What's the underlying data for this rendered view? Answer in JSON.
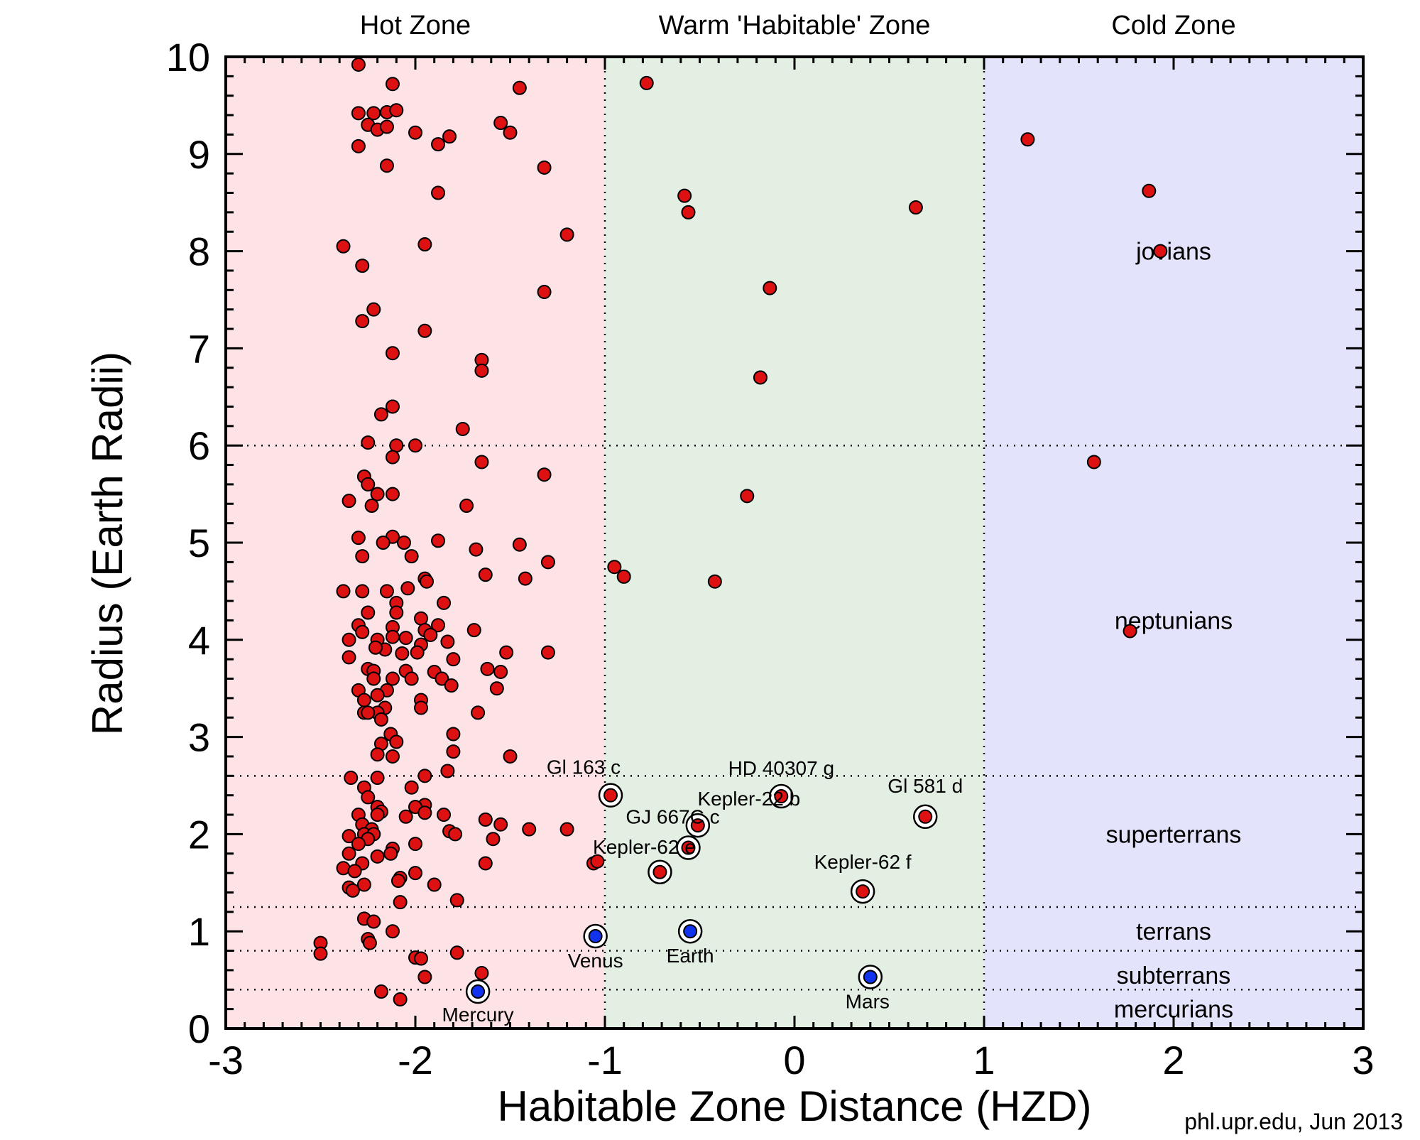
{
  "chart_data": {
    "type": "scatter",
    "title": "",
    "xlabel": "Habitable Zone Distance (HZD)",
    "ylabel": "Radius (Earth Radii)",
    "xlim": [
      -3,
      3
    ],
    "ylim": [
      0,
      10
    ],
    "xticks": [
      "-3",
      "-2",
      "-1",
      "0",
      "1",
      "2",
      "3"
    ],
    "yticks": [
      "0",
      "1",
      "2",
      "3",
      "4",
      "5",
      "6",
      "7",
      "8",
      "9",
      "10"
    ],
    "credit": "phl.upr.edu, Jun 2013",
    "zones": [
      {
        "label": "Hot Zone",
        "x_range": [
          -3,
          -1
        ],
        "color": "#fde3e6"
      },
      {
        "label": "Warm 'Habitable' Zone",
        "x_range": [
          -1,
          1
        ],
        "color": "#e3efe3"
      },
      {
        "label": "Cold Zone",
        "x_range": [
          1,
          3
        ],
        "color": "#e3e3fb"
      }
    ],
    "size_classes": [
      {
        "label": "jovians",
        "label_y": 8.0
      },
      {
        "label": "neptunians",
        "label_y": 4.2
      },
      {
        "label": "superterrans",
        "label_y": 2.0
      },
      {
        "label": "terrans",
        "label_y": 1.0
      },
      {
        "label": "subterrans",
        "label_y": 0.55
      },
      {
        "label": "mercurians",
        "label_y": 0.2
      }
    ],
    "class_boundaries_y": [
      0.4,
      0.8,
      1.25,
      2.6,
      6.0
    ],
    "grid": false,
    "colors": {
      "exoplanet": "#dd1111",
      "solar_system": "#1133ee",
      "outline": "#000000"
    },
    "series": [
      {
        "name": "",
        "color": "#dd1111",
        "points": [
          [
            -2.3,
            9.92
          ],
          [
            -2.12,
            9.72
          ],
          [
            -1.45,
            9.68
          ],
          [
            -2.3,
            9.42
          ],
          [
            -2.22,
            9.42
          ],
          [
            -2.15,
            9.43
          ],
          [
            -2.1,
            9.45
          ],
          [
            -2.25,
            9.3
          ],
          [
            -2.2,
            9.25
          ],
          [
            -2.15,
            9.28
          ],
          [
            -1.55,
            9.32
          ],
          [
            -1.5,
            9.22
          ],
          [
            -2.0,
            9.22
          ],
          [
            -1.82,
            9.18
          ],
          [
            -2.3,
            9.08
          ],
          [
            -1.88,
            9.1
          ],
          [
            -2.15,
            8.88
          ],
          [
            -1.32,
            8.86
          ],
          [
            -1.88,
            8.6
          ],
          [
            -2.38,
            8.05
          ],
          [
            -1.95,
            8.07
          ],
          [
            -1.2,
            8.17
          ],
          [
            -2.28,
            7.85
          ],
          [
            -1.32,
            7.58
          ],
          [
            -2.22,
            7.4
          ],
          [
            -2.28,
            7.28
          ],
          [
            -1.95,
            7.18
          ],
          [
            -2.12,
            6.95
          ],
          [
            -1.65,
            6.88
          ],
          [
            -1.65,
            6.77
          ],
          [
            -2.12,
            6.4
          ],
          [
            -2.18,
            6.32
          ],
          [
            -1.75,
            6.17
          ],
          [
            -2.25,
            6.03
          ],
          [
            -2.1,
            6.0
          ],
          [
            -2.0,
            6.0
          ],
          [
            -2.12,
            5.88
          ],
          [
            -1.65,
            5.83
          ],
          [
            -2.27,
            5.68
          ],
          [
            -1.32,
            5.7
          ],
          [
            -2.25,
            5.6
          ],
          [
            -2.2,
            5.5
          ],
          [
            -2.12,
            5.5
          ],
          [
            -2.35,
            5.43
          ],
          [
            -2.23,
            5.38
          ],
          [
            -1.73,
            5.38
          ],
          [
            -2.3,
            5.05
          ],
          [
            -2.12,
            5.06
          ],
          [
            -2.06,
            5.0
          ],
          [
            -2.17,
            5.0
          ],
          [
            -1.88,
            5.02
          ],
          [
            -1.45,
            4.98
          ],
          [
            -2.02,
            4.86
          ],
          [
            -1.68,
            4.93
          ],
          [
            -2.28,
            4.86
          ],
          [
            -1.3,
            4.8
          ],
          [
            -1.63,
            4.67
          ],
          [
            -1.42,
            4.63
          ],
          [
            -1.95,
            4.63
          ],
          [
            -1.94,
            4.6
          ],
          [
            -2.38,
            4.5
          ],
          [
            -2.28,
            4.5
          ],
          [
            -2.15,
            4.5
          ],
          [
            -2.04,
            4.53
          ],
          [
            -1.85,
            4.38
          ],
          [
            -2.1,
            4.38
          ],
          [
            -2.1,
            4.28
          ],
          [
            -1.97,
            4.22
          ],
          [
            -2.25,
            4.28
          ],
          [
            -2.3,
            4.15
          ],
          [
            -1.88,
            4.15
          ],
          [
            -2.12,
            4.13
          ],
          [
            -1.95,
            4.1
          ],
          [
            -2.28,
            4.08
          ],
          [
            -1.92,
            4.05
          ],
          [
            -2.05,
            4.02
          ],
          [
            -1.69,
            4.1
          ],
          [
            -2.12,
            4.03
          ],
          [
            -2.2,
            4.0
          ],
          [
            -1.83,
            3.98
          ],
          [
            -2.35,
            4.0
          ],
          [
            -1.97,
            3.95
          ],
          [
            -2.16,
            3.9
          ],
          [
            -2.21,
            3.92
          ],
          [
            -1.99,
            3.87
          ],
          [
            -2.07,
            3.86
          ],
          [
            -1.52,
            3.87
          ],
          [
            -1.3,
            3.87
          ],
          [
            -2.35,
            3.82
          ],
          [
            -1.8,
            3.8
          ],
          [
            -1.62,
            3.7
          ],
          [
            -2.25,
            3.7
          ],
          [
            -2.22,
            3.68
          ],
          [
            -2.05,
            3.68
          ],
          [
            -1.9,
            3.67
          ],
          [
            -1.55,
            3.67
          ],
          [
            -2.02,
            3.6
          ],
          [
            -2.12,
            3.6
          ],
          [
            -2.22,
            3.6
          ],
          [
            -1.86,
            3.6
          ],
          [
            -1.81,
            3.53
          ],
          [
            -2.3,
            3.48
          ],
          [
            -2.15,
            3.48
          ],
          [
            -1.57,
            3.5
          ],
          [
            -2.2,
            3.43
          ],
          [
            -2.27,
            3.38
          ],
          [
            -1.97,
            3.38
          ],
          [
            -2.16,
            3.3
          ],
          [
            -1.97,
            3.3
          ],
          [
            -2.27,
            3.25
          ],
          [
            -2.2,
            3.25
          ],
          [
            -1.67,
            3.25
          ],
          [
            -2.25,
            3.25
          ],
          [
            -2.18,
            3.18
          ],
          [
            -1.8,
            3.03
          ],
          [
            -2.13,
            3.03
          ],
          [
            -2.1,
            2.95
          ],
          [
            -2.18,
            2.93
          ],
          [
            -1.8,
            2.85
          ],
          [
            -2.2,
            2.82
          ],
          [
            -2.12,
            2.8
          ],
          [
            -1.5,
            2.8
          ],
          [
            -1.83,
            2.65
          ],
          [
            -2.34,
            2.58
          ],
          [
            -2.2,
            2.58
          ],
          [
            -1.95,
            2.6
          ],
          [
            -2.27,
            2.48
          ],
          [
            -2.02,
            2.48
          ],
          [
            -2.25,
            2.38
          ],
          [
            -1.95,
            2.3
          ],
          [
            -2.2,
            2.28
          ],
          [
            -2.0,
            2.28
          ],
          [
            -2.18,
            2.23
          ],
          [
            -2.3,
            2.2
          ],
          [
            -1.85,
            2.2
          ],
          [
            -1.95,
            2.22
          ],
          [
            -2.2,
            2.2
          ],
          [
            -2.05,
            2.18
          ],
          [
            -1.63,
            2.15
          ],
          [
            -2.28,
            2.1
          ],
          [
            -2.23,
            2.05
          ],
          [
            -2.27,
            2.0
          ],
          [
            -2.22,
            2.0
          ],
          [
            -1.82,
            2.03
          ],
          [
            -1.79,
            2.0
          ],
          [
            -2.35,
            1.98
          ],
          [
            -1.55,
            2.1
          ],
          [
            -1.4,
            2.05
          ],
          [
            -1.2,
            2.05
          ],
          [
            -2.25,
            1.95
          ],
          [
            -1.59,
            1.95
          ],
          [
            -2.3,
            1.9
          ],
          [
            -2.0,
            1.9
          ],
          [
            -2.35,
            1.8
          ],
          [
            -2.12,
            1.85
          ],
          [
            -2.13,
            1.8
          ],
          [
            -2.2,
            1.77
          ],
          [
            -1.63,
            1.7
          ],
          [
            -2.28,
            1.7
          ],
          [
            -1.06,
            1.7
          ],
          [
            -1.04,
            1.72
          ],
          [
            -2.38,
            1.65
          ],
          [
            -2.32,
            1.62
          ],
          [
            -2.0,
            1.6
          ],
          [
            -2.08,
            1.55
          ],
          [
            -2.09,
            1.52
          ],
          [
            -2.27,
            1.48
          ],
          [
            -2.35,
            1.45
          ],
          [
            -2.33,
            1.42
          ],
          [
            -1.9,
            1.48
          ],
          [
            -2.08,
            1.3
          ],
          [
            -1.78,
            1.32
          ],
          [
            -2.27,
            1.13
          ],
          [
            -2.22,
            1.1
          ],
          [
            -2.12,
            1.0
          ],
          [
            -2.25,
            0.92
          ],
          [
            -2.24,
            0.88
          ],
          [
            -2.5,
            0.88
          ],
          [
            -1.78,
            0.78
          ],
          [
            -2.5,
            0.77
          ],
          [
            -2.0,
            0.73
          ],
          [
            -1.97,
            0.72
          ],
          [
            -1.65,
            0.57
          ],
          [
            -1.95,
            0.53
          ],
          [
            -2.18,
            0.38
          ],
          [
            -2.08,
            0.3
          ],
          [
            -0.78,
            9.73
          ],
          [
            -0.58,
            8.57
          ],
          [
            -0.56,
            8.4
          ],
          [
            0.64,
            8.45
          ],
          [
            -0.13,
            7.62
          ],
          [
            -0.18,
            6.7
          ],
          [
            -0.25,
            5.48
          ],
          [
            -0.95,
            4.75
          ],
          [
            -0.9,
            4.65
          ],
          [
            -0.42,
            4.6
          ],
          [
            -0.97,
            2.4
          ],
          [
            -0.07,
            2.39
          ],
          [
            -0.51,
            2.09
          ],
          [
            0.69,
            2.18
          ],
          [
            -0.56,
            1.86
          ],
          [
            -0.71,
            1.61
          ],
          [
            0.36,
            1.41
          ],
          [
            1.23,
            9.15
          ],
          [
            1.87,
            8.62
          ],
          [
            1.93,
            8.0
          ],
          [
            1.58,
            5.83
          ],
          [
            1.77,
            4.09
          ]
        ]
      },
      {
        "name": "",
        "color": "#1133ee",
        "points": [
          [
            -1.05,
            0.95
          ],
          [
            -0.55,
            1.0
          ],
          [
            0.4,
            0.53
          ],
          [
            -1.67,
            0.38
          ]
        ]
      }
    ],
    "annotations": [
      {
        "text": "Gl 163 c",
        "x": -0.97,
        "y": 2.4,
        "circled": true
      },
      {
        "text": "HD 40307 g",
        "x": -0.07,
        "y": 2.39,
        "circled": true
      },
      {
        "text": "Kepler-22 b",
        "x": -0.51,
        "y": 2.09,
        "circled": true
      },
      {
        "text": "GJ 667C c",
        "x": -0.56,
        "y": 1.86,
        "circled": true
      },
      {
        "text": "Kepler-62 e",
        "x": -0.71,
        "y": 1.61,
        "circled": true
      },
      {
        "text": "Gl 581 d",
        "x": 0.69,
        "y": 2.18,
        "circled": true
      },
      {
        "text": "Kepler-62 f",
        "x": 0.36,
        "y": 1.41,
        "circled": true
      },
      {
        "text": "Venus",
        "x": -1.05,
        "y": 0.95,
        "circled": true
      },
      {
        "text": "Earth",
        "x": -0.55,
        "y": 1.0,
        "circled": true
      },
      {
        "text": "Mars",
        "x": 0.4,
        "y": 0.53,
        "circled": true
      },
      {
        "text": "Mercury",
        "x": -1.67,
        "y": 0.38,
        "circled": true
      }
    ]
  }
}
